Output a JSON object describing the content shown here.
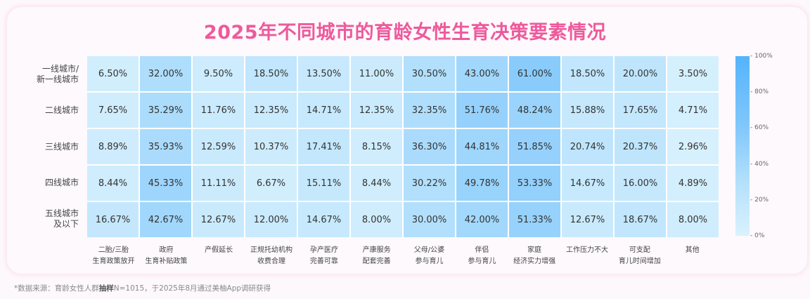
{
  "title": "2025年不同城市的育龄女性生育决策要素情况",
  "footnote": {
    "prefix": "*数据来源：育龄女性人群",
    "bold": "抽样",
    "suffix": "N=1015，于2025年8月通过美柚App调研获得"
  },
  "colors": {
    "title": "#ee5a9c",
    "scale_min": "#daf2fd",
    "scale_max": "#55b3fb"
  },
  "chart_data": {
    "type": "heatmap",
    "title": "2025年不同城市的育龄女性生育决策要素情况",
    "rows": [
      "一线城市/新一线城市",
      "二线城市",
      "三线城市",
      "四线城市",
      "五线城市及以下"
    ],
    "row_labels_display": [
      [
        "一线城市/",
        "新一线城市"
      ],
      [
        "二线城市"
      ],
      [
        "三线城市"
      ],
      [
        "四线城市"
      ],
      [
        "五线城市",
        "及以下"
      ]
    ],
    "columns": [
      "二胎/三胎生育政策放开",
      "政府生育补贴政策",
      "产假延长",
      "正规托幼机构收费合理",
      "孕产医疗完善可靠",
      "产康服务配套完善",
      "父母/公婆参与育儿",
      "伴侣参与育儿",
      "家庭经济实力增强",
      "工作压力不大",
      "可支配育儿时间增加",
      "其他"
    ],
    "column_labels_display": [
      [
        "二胎/三胎",
        "生育政策放开"
      ],
      [
        "政府",
        "生育补贴政策"
      ],
      [
        "产假延长"
      ],
      [
        "正规托幼机构",
        "收费合理"
      ],
      [
        "孕产医疗",
        "完善可靠"
      ],
      [
        "产康服务",
        "配套完善"
      ],
      [
        "父母/公婆",
        "参与育儿"
      ],
      [
        "伴侣",
        "参与育儿"
      ],
      [
        "家庭",
        "经济实力增强"
      ],
      [
        "工作压力不大"
      ],
      [
        "可支配",
        "育儿时间增加"
      ],
      [
        "其他"
      ]
    ],
    "values": [
      [
        6.5,
        32.0,
        9.5,
        18.5,
        13.5,
        11.0,
        30.5,
        43.0,
        61.0,
        18.5,
        20.0,
        3.5
      ],
      [
        7.65,
        35.29,
        11.76,
        12.35,
        14.71,
        12.35,
        32.35,
        51.76,
        48.24,
        15.88,
        17.65,
        4.71
      ],
      [
        8.89,
        35.93,
        12.59,
        10.37,
        17.41,
        8.15,
        36.3,
        44.81,
        51.85,
        20.74,
        20.37,
        2.96
      ],
      [
        8.44,
        45.33,
        11.11,
        6.67,
        15.11,
        8.44,
        30.22,
        49.78,
        53.33,
        14.67,
        16.0,
        4.89
      ],
      [
        16.67,
        42.67,
        12.67,
        12.0,
        14.67,
        8.0,
        30.0,
        42.0,
        51.33,
        12.67,
        18.67,
        8.0
      ]
    ],
    "value_format": "percent_2dp",
    "colorbar": {
      "range": [
        0,
        100
      ],
      "ticks": [
        "100%",
        "80%",
        "60%",
        "40%",
        "20%",
        "0%"
      ],
      "position": "right"
    }
  }
}
